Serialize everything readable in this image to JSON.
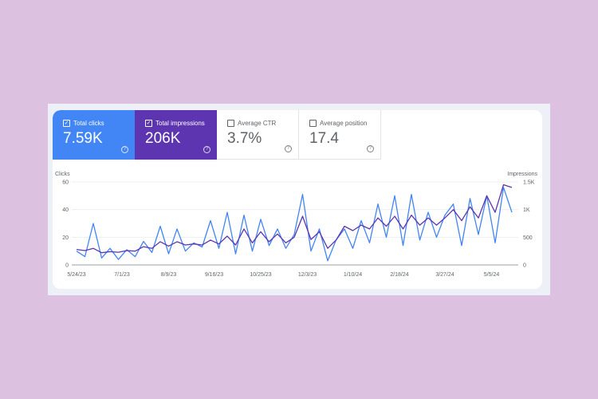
{
  "tiles": [
    {
      "label": "Total clicks",
      "value": "7.59K",
      "checked": true,
      "color": "#4285f4"
    },
    {
      "label": "Total impressions",
      "value": "206K",
      "checked": true,
      "color": "#5e35b1"
    },
    {
      "label": "Average CTR",
      "value": "3.7%",
      "checked": false
    },
    {
      "label": "Average position",
      "value": "17.4",
      "checked": false
    }
  ],
  "chart_data": {
    "type": "line",
    "left_axis_label": "Clicks",
    "right_axis_label": "Impressions",
    "left_ylim": [
      0,
      60
    ],
    "right_ylim": [
      0,
      1500
    ],
    "left_ticks": [
      "0",
      "20",
      "40",
      "60"
    ],
    "right_ticks": [
      "0",
      "500",
      "1K",
      "1.5K"
    ],
    "x_ticks": [
      "5/24/23",
      "7/1/23",
      "8/9/23",
      "9/16/23",
      "10/25/23",
      "12/3/23",
      "1/10/24",
      "2/18/24",
      "3/27/24",
      "5/5/24"
    ],
    "grid": true,
    "x": [
      "2023-05-24",
      "2023-05-31",
      "2023-06-07",
      "2023-06-14",
      "2023-06-21",
      "2023-06-28",
      "2023-07-05",
      "2023-07-12",
      "2023-07-19",
      "2023-07-26",
      "2023-08-02",
      "2023-08-09",
      "2023-08-16",
      "2023-08-23",
      "2023-08-30",
      "2023-09-06",
      "2023-09-13",
      "2023-09-20",
      "2023-09-27",
      "2023-10-04",
      "2023-10-11",
      "2023-10-18",
      "2023-10-25",
      "2023-11-01",
      "2023-11-08",
      "2023-11-15",
      "2023-11-22",
      "2023-11-29",
      "2023-12-06",
      "2023-12-13",
      "2023-12-20",
      "2023-12-27",
      "2024-01-03",
      "2024-01-10",
      "2024-01-17",
      "2024-01-24",
      "2024-01-31",
      "2024-02-07",
      "2024-02-14",
      "2024-02-21",
      "2024-02-28",
      "2024-03-06",
      "2024-03-13",
      "2024-03-20",
      "2024-03-27",
      "2024-04-03",
      "2024-04-10",
      "2024-04-17",
      "2024-04-24",
      "2024-05-01",
      "2024-05-08",
      "2024-05-15",
      "2024-05-22"
    ],
    "series": [
      {
        "axis": "left",
        "color": "#4285f4",
        "values": [
          10,
          6,
          30,
          5,
          12,
          4,
          11,
          6,
          17,
          9,
          28,
          8,
          26,
          10,
          16,
          13,
          32,
          12,
          38,
          8,
          36,
          10,
          33,
          14,
          26,
          12,
          22,
          51,
          10,
          26,
          3,
          18,
          26,
          12,
          32,
          16,
          44,
          20,
          50,
          14,
          51,
          18,
          38,
          20,
          36,
          44,
          14,
          48,
          22,
          50,
          16,
          56,
          38
        ]
      },
      {
        "axis": "right",
        "color": "#5e35b1",
        "values": [
          280,
          260,
          300,
          220,
          240,
          230,
          260,
          250,
          330,
          300,
          420,
          340,
          420,
          360,
          380,
          360,
          450,
          380,
          520,
          360,
          650,
          400,
          600,
          420,
          560,
          400,
          500,
          880,
          460,
          600,
          300,
          450,
          700,
          620,
          720,
          650,
          850,
          700,
          880,
          650,
          900,
          720,
          850,
          720,
          850,
          1000,
          800,
          1050,
          850,
          1250,
          950,
          1450,
          1400
        ]
      }
    ]
  }
}
